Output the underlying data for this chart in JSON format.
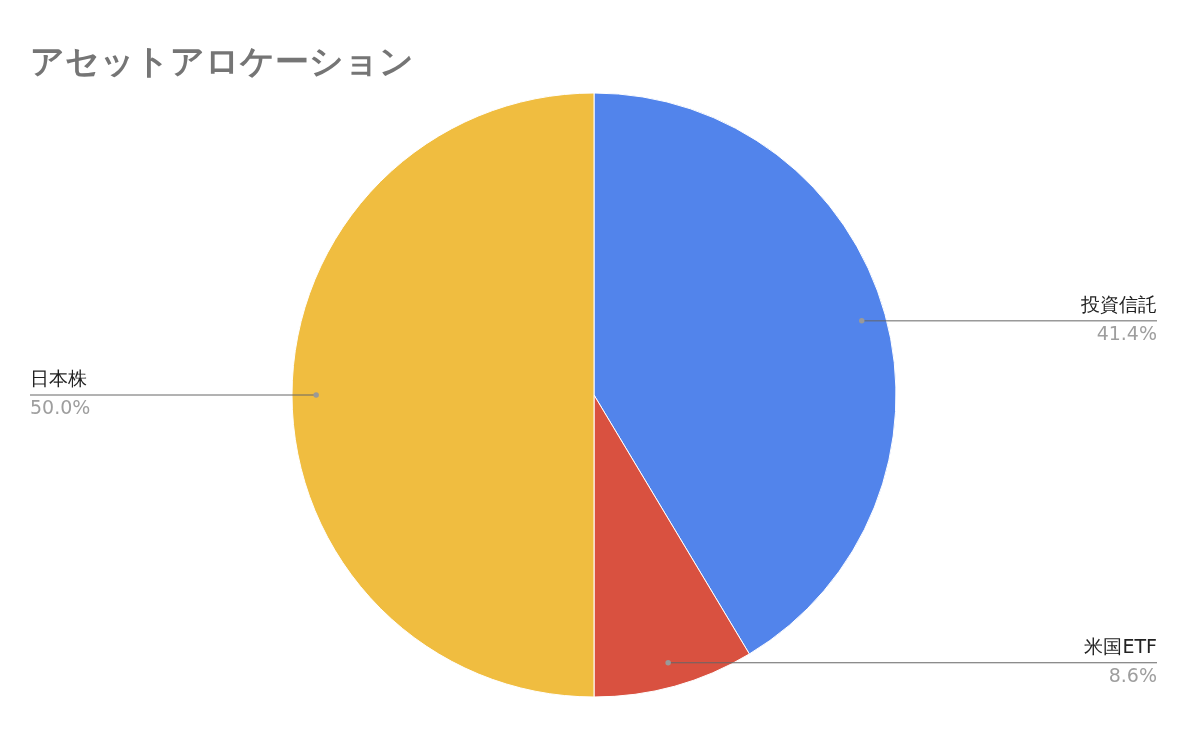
{
  "chart_data": {
    "type": "pie",
    "title": "アセットアロケーション",
    "categories": [
      "投資信託",
      "米国ETF",
      "日本株"
    ],
    "values": [
      41.4,
      8.6,
      50.0
    ],
    "colors": [
      "#5284eb",
      "#d95140",
      "#f0bd40"
    ],
    "value_labels": [
      "41.4%",
      "8.6%",
      "50.0%"
    ]
  }
}
